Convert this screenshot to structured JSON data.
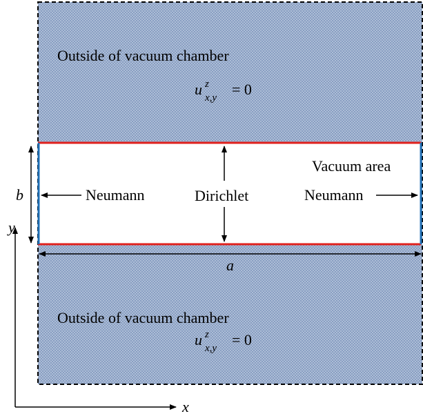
{
  "top_region": {
    "label": "Outside of vacuum chamber",
    "formula": {
      "base": "u",
      "sup": "z",
      "sub": "x,y",
      "rhs": "= 0"
    }
  },
  "vacuum": {
    "label": "Vacuum area",
    "left": "Neumann",
    "center": "Dirichlet",
    "right": "Neumann",
    "height": "b",
    "width": "a"
  },
  "bottom_region": {
    "label": "Outside of vacuum chamber",
    "formula": {
      "base": "u",
      "sup": "z",
      "sub": "x,y",
      "rhs": "= 0"
    }
  },
  "axes": {
    "y": "y",
    "x": "x"
  }
}
